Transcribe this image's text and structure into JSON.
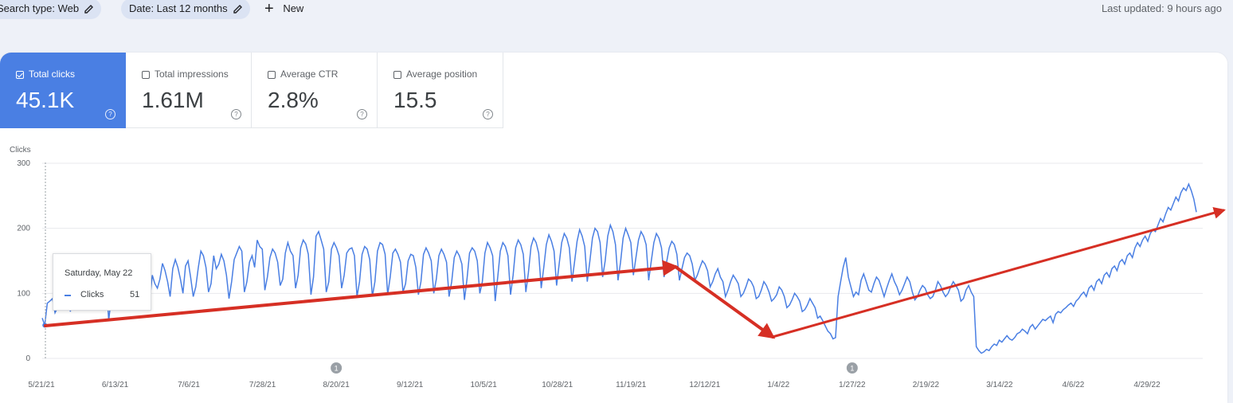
{
  "filters": {
    "search_type": "Search type: Web",
    "date": "Date: Last 12 months",
    "new_label": "New"
  },
  "last_updated": "Last updated: 9 hours ago",
  "metrics": [
    {
      "label": "Total clicks",
      "value": "45.1K",
      "selected": true
    },
    {
      "label": "Total impressions",
      "value": "1.61M",
      "selected": false
    },
    {
      "label": "Average CTR",
      "value": "2.8%",
      "selected": false
    },
    {
      "label": "Average position",
      "value": "15.5",
      "selected": false
    }
  ],
  "tooltip": {
    "date": "Saturday, May 22",
    "series": "Clicks",
    "value": "51"
  },
  "colors": {
    "series": "#4a7fe3",
    "arrow": "#d62f24",
    "active_card": "#4a7fe3"
  },
  "chart_data": {
    "type": "line",
    "ylabel": "Clicks",
    "ylim": [
      0,
      300
    ],
    "y_ticks": [
      "300",
      "200",
      "100",
      "0"
    ],
    "x_tick_labels": [
      "5/21/21",
      "6/13/21",
      "7/6/21",
      "7/28/21",
      "8/20/21",
      "9/12/21",
      "10/5/21",
      "10/28/21",
      "11/19/21",
      "12/12/21",
      "1/4/22",
      "1/27/22",
      "2/19/22",
      "3/14/22",
      "4/6/22",
      "4/29/22"
    ],
    "annotation_markers": [
      {
        "label": "1",
        "near": "8/20/21"
      },
      {
        "label": "1",
        "near": "1/27/22"
      }
    ],
    "series": [
      {
        "name": "Clicks",
        "values": [
          62,
          51,
          85,
          88,
          92,
          70,
          78,
          95,
          98,
          105,
          115,
          72,
          98,
          102,
          110,
          120,
          135,
          95,
          118,
          140,
          105,
          130,
          145,
          100,
          120,
          122,
          58,
          95,
          90,
          110,
          88,
          150,
          120,
          112,
          140,
          125,
          95,
          118,
          128,
          145,
          102,
          115,
          88,
          128,
          115,
          108,
          122,
          146,
          135,
          118,
          95,
          138,
          152,
          140,
          122,
          100,
          142,
          150,
          125,
          95,
          110,
          140,
          165,
          158,
          140,
          102,
          115,
          158,
          138,
          145,
          160,
          150,
          128,
          92,
          118,
          152,
          162,
          172,
          165,
          102,
          118,
          148,
          158,
          140,
          182,
          172,
          168,
          105,
          125,
          155,
          168,
          162,
          148,
          112,
          122,
          162,
          178,
          165,
          158,
          108,
          128,
          170,
          182,
          176,
          160,
          98,
          125,
          188,
          195,
          182,
          168,
          102,
          118,
          168,
          178,
          170,
          158,
          108,
          128,
          162,
          168,
          170,
          158,
          95,
          118,
          160,
          172,
          168,
          152,
          95,
          118,
          165,
          178,
          175,
          160,
          98,
          125,
          162,
          168,
          160,
          148,
          102,
          115,
          150,
          160,
          158,
          140,
          98,
          118,
          160,
          170,
          162,
          150,
          100,
          122,
          158,
          168,
          160,
          148,
          95,
          118,
          155,
          165,
          158,
          145,
          90,
          122,
          162,
          170,
          165,
          150,
          100,
          118,
          162,
          178,
          170,
          158,
          88,
          125,
          165,
          178,
          172,
          158,
          98,
          128,
          170,
          182,
          175,
          160,
          102,
          132,
          172,
          185,
          178,
          162,
          108,
          140,
          175,
          190,
          180,
          165,
          112,
          145,
          178,
          192,
          185,
          170,
          118,
          148,
          180,
          198,
          188,
          172,
          118,
          150,
          185,
          200,
          195,
          178,
          125,
          150,
          188,
          205,
          195,
          175,
          120,
          148,
          185,
          200,
          190,
          178,
          128,
          155,
          182,
          195,
          188,
          175,
          120,
          150,
          178,
          192,
          185,
          170,
          125,
          148,
          170,
          180,
          175,
          160,
          120,
          138,
          155,
          162,
          158,
          145,
          120,
          128,
          140,
          150,
          145,
          135,
          110,
          118,
          130,
          138,
          125,
          118,
          95,
          105,
          118,
          128,
          122,
          115,
          95,
          100,
          110,
          122,
          118,
          110,
          92,
          95,
          105,
          118,
          112,
          102,
          88,
          92,
          98,
          110,
          105,
          95,
          78,
          82,
          90,
          100,
          95,
          88,
          72,
          75,
          82,
          92,
          85,
          78,
          62,
          65,
          58,
          50,
          42,
          38,
          30,
          32,
          95,
          118,
          140,
          155,
          125,
          110,
          95,
          102,
          98,
          120,
          130,
          118,
          105,
          102,
          115,
          125,
          120,
          108,
          95,
          108,
          120,
          130,
          118,
          110,
          98,
          105,
          115,
          125,
          118,
          102,
          90,
          95,
          105,
          112,
          108,
          98,
          92,
          95,
          105,
          118,
          112,
          102,
          95,
          100,
          110,
          118,
          112,
          105,
          88,
          92,
          105,
          112,
          102,
          95,
          18,
          12,
          8,
          10,
          14,
          12,
          18,
          22,
          20,
          28,
          25,
          30,
          35,
          30,
          28,
          32,
          38,
          40,
          45,
          42,
          38,
          48,
          52,
          45,
          50,
          55,
          60,
          58,
          62,
          65,
          55,
          68,
          72,
          70,
          75,
          78,
          82,
          85,
          80,
          88,
          92,
          98,
          102,
          95,
          108,
          112,
          105,
          118,
          122,
          115,
          128,
          132,
          125,
          138,
          142,
          135,
          148,
          152,
          145,
          158,
          162,
          155,
          170,
          178,
          172,
          182,
          188,
          180,
          192,
          198,
          195,
          205,
          215,
          210,
          222,
          232,
          228,
          238,
          248,
          242,
          255,
          262,
          258,
          268,
          258,
          245,
          225
        ]
      }
    ]
  }
}
